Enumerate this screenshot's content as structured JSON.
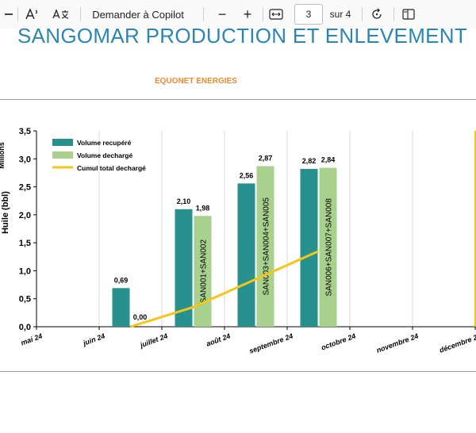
{
  "toolbar": {
    "read_aloud_icon": "read-aloud-icon",
    "translate_icon": "translate-icon",
    "copilot_label": "Demander à Copilot",
    "zoom_out": "−",
    "zoom_in": "+",
    "page_current": "3",
    "page_total_label": "sur 4",
    "rotate_icon": "rotate-icon",
    "page_view_icon": "page-view-icon"
  },
  "document": {
    "title": "SANGOMAR  PRODUCTION ET ENLEVEMENT",
    "subtitle": "EQUONET ENERGIES"
  },
  "chart_data": {
    "type": "bar",
    "ylabel": "Huile (bbl)",
    "ylabel_unit": "Millions",
    "ylim": [
      0,
      3.5
    ],
    "yticks": [
      "0,0",
      "0,5",
      "1,0",
      "1,5",
      "2,0",
      "2,5",
      "3,0",
      "3,5"
    ],
    "categories": [
      "mai 24",
      "juin 24",
      "juillet 24",
      "août 24",
      "septembre 24",
      "octobre 24",
      "novembre 24",
      "décembre 24"
    ],
    "grid": true,
    "legend_position": "top-left",
    "series": [
      {
        "name": "Volume recupéré",
        "kind": "bar",
        "color": "#26918f",
        "values": [
          null,
          0.69,
          2.1,
          2.56,
          2.82,
          null,
          null,
          null
        ],
        "labels": [
          "",
          "0,69",
          "2,10",
          "2,56",
          "2,82",
          "",
          "",
          ""
        ]
      },
      {
        "name": "Volume dechargé",
        "kind": "bar",
        "color": "#a9d18e",
        "values": [
          null,
          null,
          1.98,
          2.87,
          2.84,
          null,
          null,
          null
        ],
        "labels": [
          "",
          "",
          "1,98",
          "2,87",
          "2,84",
          "",
          "",
          ""
        ],
        "annotations": [
          "",
          "",
          "SAN001+SAN002",
          "SAN003+SAN004+SAN005",
          "SAN006+SAN007+SAN008",
          "",
          "",
          ""
        ]
      },
      {
        "name": "Cumul total dechargé",
        "kind": "line",
        "color": "#f5c518",
        "points": [
          [
            1.0,
            0.0
          ],
          [
            2.0,
            0.35
          ],
          [
            3.0,
            0.85
          ],
          [
            4.0,
            1.35
          ]
        ],
        "labels": [
          "0,00"
        ]
      }
    ],
    "marker_line": {
      "position": "décembre 24",
      "color": "#f5c518"
    }
  }
}
